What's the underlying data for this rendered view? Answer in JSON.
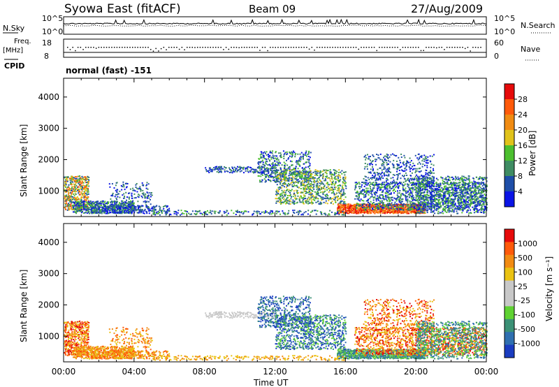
{
  "header": {
    "title_left": "Syowa East (fitACF)",
    "title_center": "Beam 09",
    "title_right": "27/Aug/2009"
  },
  "status_panels": {
    "nsky_label": "N.Sky",
    "nsearch_label": "N.Search",
    "nsky_ticks": [
      "10^5",
      "10^0"
    ],
    "nsearch_ticks": [
      "10^5",
      "10^0"
    ],
    "freq_label": "Freq.",
    "freq_unit": "[MHz]",
    "freq_ticks": [
      "18",
      "8"
    ],
    "nave_label": "Nave",
    "nave_ticks": [
      "60",
      "0"
    ],
    "cpid_label": "CPID",
    "mode_text": "normal (fast) -151"
  },
  "colors": {
    "power_scale": [
      "#0a14e6",
      "#1e4ea8",
      "#3f8c63",
      "#4cbf2f",
      "#e0c21b",
      "#f08b12",
      "#ff5a0a",
      "#e60a0a"
    ],
    "velocity_scale": [
      "#1a3cc0",
      "#2f6fb0",
      "#3b9176",
      "#5fd232",
      "#c8c8c8",
      "#c8c8c8",
      "#eac212",
      "#f28b12",
      "#ff5a0a",
      "#e60a0a"
    ],
    "nsky_trace": "#000000",
    "freq_trace": "#000000"
  },
  "chart_data": [
    {
      "type": "heatmap",
      "panel": "power",
      "ylabel": "Slant Range [km]",
      "xlabel": "",
      "ylim": [
        180,
        4600
      ],
      "xlim": [
        "00:00",
        "24:00"
      ],
      "x_ticks": [
        "00:00",
        "04:00",
        "08:00",
        "12:00",
        "16:00",
        "20:00",
        "00:00"
      ],
      "y_ticks": [
        "1000",
        "2000",
        "3000",
        "4000"
      ],
      "y_tick_values": [
        1000,
        2000,
        3000,
        4000
      ],
      "colorbar": {
        "label": "Power [dB]",
        "ticks": [
          "28",
          "24",
          "20",
          "16",
          "12",
          "8",
          "4"
        ],
        "tick_values": [
          28,
          24,
          20,
          16,
          12,
          8,
          4
        ],
        "range": [
          0,
          32
        ]
      }
    },
    {
      "type": "heatmap",
      "panel": "velocity",
      "ylabel": "Slant Range [km]",
      "xlabel": "Time UT",
      "ylim": [
        180,
        4600
      ],
      "xlim": [
        "00:00",
        "24:00"
      ],
      "x_ticks": [
        "00:00",
        "04:00",
        "08:00",
        "12:00",
        "16:00",
        "20:00",
        "00:00"
      ],
      "y_ticks": [
        "1000",
        "2000",
        "3000",
        "4000"
      ],
      "y_tick_values": [
        1000,
        2000,
        3000,
        4000
      ],
      "colorbar": {
        "label": "Velocity [m s⁻¹]",
        "ticks": [
          "1000",
          "500",
          "100",
          "25",
          "-25",
          "-100",
          "-500",
          "-1000"
        ]
      }
    }
  ]
}
